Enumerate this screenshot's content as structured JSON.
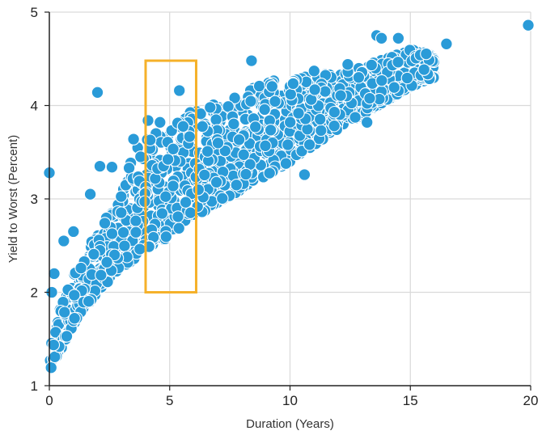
{
  "chart_data": {
    "type": "scatter",
    "title": "",
    "xlabel": "Duration (Years)",
    "ylabel": "Yield to Worst (Percent)",
    "xlim": [
      0,
      20
    ],
    "ylim": [
      1,
      5
    ],
    "xticks": [
      0,
      5,
      10,
      15,
      20
    ],
    "yticks": [
      1,
      2,
      3,
      4,
      5
    ],
    "xtick_labels": [
      "0",
      "5",
      "10",
      "15",
      "20"
    ],
    "ytick_labels": [
      "1",
      "2",
      "3",
      "4",
      "5"
    ],
    "grid": "horizontal and vertical, light gray",
    "legend": "none",
    "point_color": "#2a9bd8",
    "point_edge_color": "#ffffff",
    "highlight_box": {
      "x_range": [
        4,
        6.1
      ],
      "y_range": [
        2,
        4.48
      ],
      "color": "#f5b12a"
    },
    "outliers": [
      {
        "x": 0.0,
        "y": 3.28
      },
      {
        "x": 0.2,
        "y": 2.2
      },
      {
        "x": 0.1,
        "y": 2.0
      },
      {
        "x": 0.6,
        "y": 2.55
      },
      {
        "x": 1.0,
        "y": 2.65
      },
      {
        "x": 1.7,
        "y": 3.05
      },
      {
        "x": 2.0,
        "y": 4.14
      },
      {
        "x": 2.1,
        "y": 3.35
      },
      {
        "x": 2.6,
        "y": 3.34
      },
      {
        "x": 3.5,
        "y": 3.64
      },
      {
        "x": 4.1,
        "y": 3.84
      },
      {
        "x": 4.6,
        "y": 3.82
      },
      {
        "x": 5.4,
        "y": 4.16
      },
      {
        "x": 8.4,
        "y": 4.48
      },
      {
        "x": 10.6,
        "y": 3.26
      },
      {
        "x": 11.0,
        "y": 4.37
      },
      {
        "x": 12.4,
        "y": 4.44
      },
      {
        "x": 13.2,
        "y": 3.82
      },
      {
        "x": 13.6,
        "y": 4.75
      },
      {
        "x": 13.8,
        "y": 4.72
      },
      {
        "x": 14.5,
        "y": 4.72
      },
      {
        "x": 16.5,
        "y": 4.66
      },
      {
        "x": 19.9,
        "y": 4.86
      }
    ],
    "band": {
      "description": "dense cloud of points between lower and upper envelope",
      "lower": [
        [
          0,
          1.15
        ],
        [
          0.3,
          1.3
        ],
        [
          1,
          1.65
        ],
        [
          2,
          2.0
        ],
        [
          3,
          2.25
        ],
        [
          4,
          2.45
        ],
        [
          5,
          2.6
        ],
        [
          6,
          2.8
        ],
        [
          8,
          3.1
        ],
        [
          10,
          3.4
        ],
        [
          12,
          3.75
        ],
        [
          14,
          4.05
        ],
        [
          15,
          4.2
        ],
        [
          16,
          4.3
        ]
      ],
      "upper": [
        [
          0,
          1.45
        ],
        [
          0.3,
          1.75
        ],
        [
          1,
          2.2
        ],
        [
          2,
          2.65
        ],
        [
          3,
          3.05
        ],
        [
          3.5,
          3.5
        ],
        [
          4,
          3.65
        ],
        [
          5,
          3.8
        ],
        [
          6,
          3.95
        ],
        [
          7,
          4.05
        ],
        [
          8,
          4.15
        ],
        [
          9,
          4.25
        ],
        [
          10,
          4.3
        ],
        [
          12,
          4.35
        ],
        [
          14,
          4.5
        ],
        [
          15,
          4.6
        ],
        [
          16,
          4.55
        ]
      ]
    }
  }
}
